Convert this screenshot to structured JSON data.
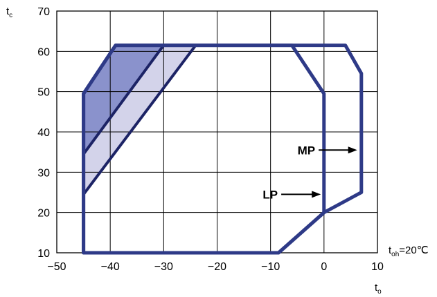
{
  "chart_data": {
    "type": "area",
    "xlim": [
      -50,
      10
    ],
    "ylim": [
      10,
      70
    ],
    "x_ticks": [
      -50,
      -40,
      -30,
      -20,
      -10,
      0,
      10
    ],
    "y_ticks": [
      10,
      20,
      30,
      40,
      50,
      60,
      70
    ],
    "x_tick_labels": [
      "−50",
      "−40",
      "−30",
      "−20",
      "−10",
      "0",
      "10"
    ],
    "y_tick_labels": [
      "10",
      "20",
      "30",
      "40",
      "50",
      "60",
      "70"
    ],
    "grid": true,
    "ylabel": {
      "main": "t",
      "sub": "c"
    },
    "xlabel": {
      "main": "t",
      "sub": "o"
    },
    "condition": {
      "main": "t",
      "sub": "oh",
      "rest": "=20℃"
    },
    "envelopes": [
      {
        "label": "MP",
        "points": [
          [
            -45,
            10
          ],
          [
            -8.5,
            10
          ],
          [
            0,
            20
          ],
          [
            7,
            25
          ],
          [
            7,
            54.5
          ],
          [
            4,
            61.5
          ],
          [
            -39,
            61.5
          ],
          [
            -45,
            49.5
          ],
          [
            -45,
            10
          ]
        ]
      },
      {
        "label": "LP",
        "points": [
          [
            -45,
            10
          ],
          [
            -8.5,
            10
          ],
          [
            0,
            20
          ],
          [
            0,
            49.5
          ],
          [
            -6,
            61.5
          ],
          [
            -39,
            61.5
          ],
          [
            -45,
            49.5
          ],
          [
            -45,
            10
          ]
        ]
      }
    ],
    "shaded_regions": [
      {
        "color": "#8a92cc",
        "points": [
          [
            -45,
            49.5
          ],
          [
            -39,
            61.5
          ],
          [
            -30,
            61.5
          ],
          [
            -45,
            34.5
          ]
        ]
      },
      {
        "color": "#d3d3ea",
        "points": [
          [
            -45,
            34.5
          ],
          [
            -30,
            61.5
          ],
          [
            -24,
            61.5
          ],
          [
            -45,
            24.5
          ]
        ]
      }
    ],
    "boundary_lines": [
      {
        "points": [
          [
            -45,
            34.5
          ],
          [
            -30,
            61.5
          ]
        ]
      },
      {
        "points": [
          [
            -45,
            24.5
          ],
          [
            -24,
            61.5
          ]
        ]
      }
    ],
    "annotations": [
      {
        "text": "MP",
        "arrow_from": [
          -1,
          35.5
        ],
        "arrow_to": [
          6.2,
          35.5
        ]
      },
      {
        "text": "LP",
        "arrow_from": [
          -8,
          24.5
        ],
        "arrow_to": [
          -0.6,
          24.5
        ]
      }
    ],
    "colors": {
      "envelope": "#2e3a87",
      "boundary": "#1c2365",
      "grid": "#000000"
    }
  }
}
